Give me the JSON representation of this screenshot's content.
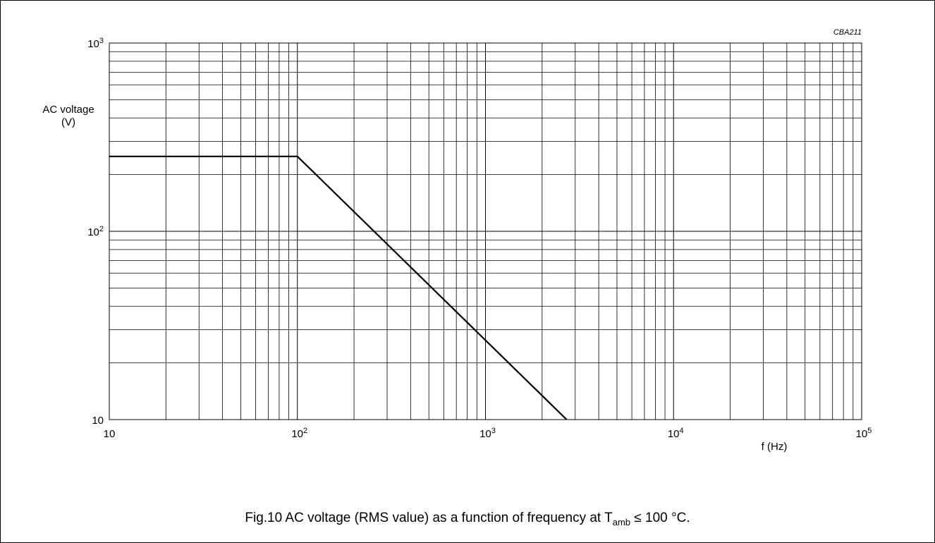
{
  "chart_data": {
    "type": "line",
    "figure_code": "CBA211",
    "ylabel_line1": "AC voltage",
    "ylabel_line2": "(V)",
    "xlabel": "f  (Hz)",
    "x_scale": "log",
    "y_scale": "log",
    "xlim": [
      10,
      100000
    ],
    "ylim": [
      10,
      1000
    ],
    "grid": true,
    "x_ticks": [
      {
        "value": 10,
        "base": "10",
        "exp": ""
      },
      {
        "value": 100,
        "base": "10",
        "exp": "2"
      },
      {
        "value": 1000,
        "base": "10",
        "exp": "3"
      },
      {
        "value": 10000,
        "base": "10",
        "exp": "4"
      },
      {
        "value": 100000,
        "base": "10",
        "exp": "5"
      }
    ],
    "y_ticks": [
      {
        "value": 10,
        "base": "10",
        "exp": ""
      },
      {
        "value": 100,
        "base": "10",
        "exp": "2"
      },
      {
        "value": 1000,
        "base": "10",
        "exp": "3"
      }
    ],
    "series": [
      {
        "x": [
          10,
          100,
          2700
        ],
        "y": [
          250,
          250,
          10
        ]
      }
    ]
  },
  "caption": {
    "prefix": "Fig.10  AC voltage (RMS value) as a function of frequency at T",
    "subscript": "amb",
    "suffix": " ≤ 100 °C."
  }
}
